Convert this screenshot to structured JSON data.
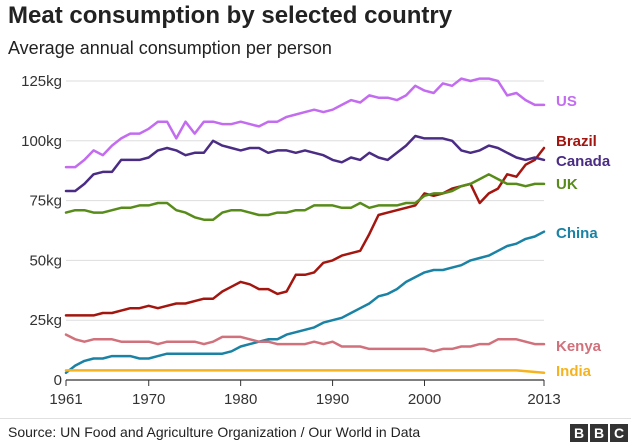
{
  "title": "Meat consumption by selected country",
  "subtitle": "Average annual consumption per person",
  "source": "Source: UN Food and Agriculture Organization / Our World in Data",
  "logo_letters": [
    "B",
    "B",
    "C"
  ],
  "chart_data": {
    "type": "line",
    "x_ticks": [
      "1961",
      "1970",
      "1980",
      "1990",
      "2000",
      "2013"
    ],
    "y_ticks": [
      "0",
      "25kg",
      "50kg",
      "75kg",
      "100kg",
      "125kg"
    ],
    "xlim": [
      1961,
      2013
    ],
    "ylim": [
      0,
      125
    ],
    "grid": true,
    "series": [
      {
        "name": "US",
        "color": "#c36cf0",
        "x": [
          1961,
          1962,
          1963,
          1964,
          1965,
          1966,
          1967,
          1968,
          1969,
          1970,
          1971,
          1972,
          1973,
          1974,
          1975,
          1976,
          1977,
          1978,
          1979,
          1980,
          1981,
          1982,
          1983,
          1984,
          1985,
          1986,
          1987,
          1988,
          1989,
          1990,
          1991,
          1992,
          1993,
          1994,
          1995,
          1996,
          1997,
          1998,
          1999,
          2000,
          2001,
          2002,
          2003,
          2004,
          2005,
          2006,
          2007,
          2008,
          2009,
          2010,
          2011,
          2012,
          2013
        ],
        "y": [
          89,
          89,
          92,
          96,
          94,
          98,
          101,
          103,
          103,
          105,
          108,
          108,
          101,
          108,
          103,
          108,
          108,
          107,
          107,
          108,
          107,
          106,
          108,
          108,
          110,
          111,
          112,
          113,
          112,
          113,
          115,
          117,
          116,
          119,
          118,
          118,
          117,
          119,
          123,
          121,
          120,
          124,
          123,
          126,
          125,
          126,
          126,
          125,
          119,
          120,
          117,
          115,
          115
        ]
      },
      {
        "name": "Brazil",
        "color": "#a3160f",
        "x": [
          1961,
          1962,
          1963,
          1964,
          1965,
          1966,
          1967,
          1968,
          1969,
          1970,
          1971,
          1972,
          1973,
          1974,
          1975,
          1976,
          1977,
          1978,
          1979,
          1980,
          1981,
          1982,
          1983,
          1984,
          1985,
          1986,
          1987,
          1988,
          1989,
          1990,
          1991,
          1992,
          1993,
          1994,
          1995,
          1996,
          1997,
          1998,
          1999,
          2000,
          2001,
          2002,
          2003,
          2004,
          2005,
          2006,
          2007,
          2008,
          2009,
          2010,
          2011,
          2012,
          2013
        ],
        "y": [
          27,
          27,
          27,
          27,
          28,
          28,
          29,
          30,
          30,
          31,
          30,
          31,
          32,
          32,
          33,
          34,
          34,
          37,
          39,
          41,
          40,
          38,
          38,
          36,
          37,
          44,
          44,
          45,
          49,
          50,
          52,
          53,
          54,
          61,
          69,
          70,
          71,
          72,
          73,
          78,
          77,
          78,
          80,
          81,
          82,
          74,
          78,
          80,
          86,
          85,
          90,
          92,
          97
        ]
      },
      {
        "name": "Canada",
        "color": "#4a2c84",
        "x": [
          1961,
          1962,
          1963,
          1964,
          1965,
          1966,
          1967,
          1968,
          1969,
          1970,
          1971,
          1972,
          1973,
          1974,
          1975,
          1976,
          1977,
          1978,
          1979,
          1980,
          1981,
          1982,
          1983,
          1984,
          1985,
          1986,
          1987,
          1988,
          1989,
          1990,
          1991,
          1992,
          1993,
          1994,
          1995,
          1996,
          1997,
          1998,
          1999,
          2000,
          2001,
          2002,
          2003,
          2004,
          2005,
          2006,
          2007,
          2008,
          2009,
          2010,
          2011,
          2012,
          2013
        ],
        "y": [
          79,
          79,
          82,
          86,
          87,
          87,
          92,
          92,
          92,
          93,
          96,
          97,
          96,
          94,
          95,
          95,
          100,
          98,
          97,
          96,
          97,
          97,
          95,
          96,
          96,
          95,
          96,
          95,
          94,
          92,
          91,
          93,
          92,
          95,
          93,
          92,
          95,
          98,
          102,
          101,
          101,
          101,
          100,
          96,
          95,
          96,
          98,
          97,
          95,
          93,
          92,
          93,
          92
        ]
      },
      {
        "name": "UK",
        "color": "#588c1a",
        "x": [
          1961,
          1962,
          1963,
          1964,
          1965,
          1966,
          1967,
          1968,
          1969,
          1970,
          1971,
          1972,
          1973,
          1974,
          1975,
          1976,
          1977,
          1978,
          1979,
          1980,
          1981,
          1982,
          1983,
          1984,
          1985,
          1986,
          1987,
          1988,
          1989,
          1990,
          1991,
          1992,
          1993,
          1994,
          1995,
          1996,
          1997,
          1998,
          1999,
          2000,
          2001,
          2002,
          2003,
          2004,
          2005,
          2006,
          2007,
          2008,
          2009,
          2010,
          2011,
          2012,
          2013
        ],
        "y": [
          70,
          71,
          71,
          70,
          70,
          71,
          72,
          72,
          73,
          73,
          74,
          74,
          71,
          70,
          68,
          67,
          67,
          70,
          71,
          71,
          70,
          69,
          69,
          70,
          70,
          71,
          71,
          73,
          73,
          73,
          72,
          72,
          74,
          72,
          73,
          73,
          73,
          74,
          74,
          77,
          78,
          78,
          79,
          81,
          82,
          84,
          86,
          84,
          82,
          82,
          81,
          82,
          82
        ]
      },
      {
        "name": "China",
        "color": "#1a82a4",
        "x": [
          1961,
          1962,
          1963,
          1964,
          1965,
          1966,
          1967,
          1968,
          1969,
          1970,
          1971,
          1972,
          1973,
          1974,
          1975,
          1976,
          1977,
          1978,
          1979,
          1980,
          1981,
          1982,
          1983,
          1984,
          1985,
          1986,
          1987,
          1988,
          1989,
          1990,
          1991,
          1992,
          1993,
          1994,
          1995,
          1996,
          1997,
          1998,
          1999,
          2000,
          2001,
          2002,
          2003,
          2004,
          2005,
          2006,
          2007,
          2008,
          2009,
          2010,
          2011,
          2012,
          2013
        ],
        "y": [
          3,
          6,
          8,
          9,
          9,
          10,
          10,
          10,
          9,
          9,
          10,
          11,
          11,
          11,
          11,
          11,
          11,
          11,
          12,
          14,
          15,
          16,
          17,
          17,
          19,
          20,
          21,
          22,
          24,
          25,
          26,
          28,
          30,
          32,
          35,
          36,
          38,
          41,
          43,
          45,
          46,
          46,
          47,
          48,
          50,
          51,
          52,
          54,
          56,
          57,
          59,
          60,
          62
        ]
      },
      {
        "name": "Kenya",
        "color": "#d0717b",
        "x": [
          1961,
          1962,
          1963,
          1964,
          1965,
          1966,
          1967,
          1968,
          1969,
          1970,
          1971,
          1972,
          1973,
          1974,
          1975,
          1976,
          1977,
          1978,
          1979,
          1980,
          1981,
          1982,
          1983,
          1984,
          1985,
          1986,
          1987,
          1988,
          1989,
          1990,
          1991,
          1992,
          1993,
          1994,
          1995,
          1996,
          1997,
          1998,
          1999,
          2000,
          2001,
          2002,
          2003,
          2004,
          2005,
          2006,
          2007,
          2008,
          2009,
          2010,
          2011,
          2012,
          2013
        ],
        "y": [
          19,
          17,
          16,
          17,
          17,
          17,
          16,
          16,
          16,
          16,
          15,
          16,
          16,
          16,
          16,
          15,
          16,
          18,
          18,
          18,
          17,
          16,
          16,
          15,
          15,
          15,
          15,
          16,
          15,
          16,
          14,
          14,
          14,
          13,
          13,
          13,
          13,
          13,
          13,
          13,
          12,
          13,
          13,
          14,
          14,
          15,
          15,
          17,
          17,
          17,
          16,
          15,
          15
        ]
      },
      {
        "name": "India",
        "color": "#f5b41f",
        "x": [
          1961,
          1970,
          1980,
          1990,
          2000,
          2006,
          2010,
          2013
        ],
        "y": [
          4,
          4,
          4,
          4,
          4,
          4,
          4,
          3
        ]
      }
    ]
  }
}
